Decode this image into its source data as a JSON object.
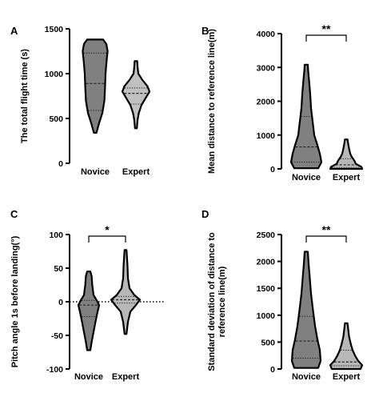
{
  "chart_data": [
    {
      "panel": "A",
      "type": "violin",
      "ylabel": "The total flight time (s)",
      "ylim": [
        0,
        1500
      ],
      "yticks": [
        0,
        500,
        1000,
        1500
      ],
      "categories": [
        "Novice",
        "Expert"
      ],
      "significance": "",
      "zero_line": false,
      "series": [
        {
          "min": 340,
          "max": 1380,
          "q1": 590,
          "median": 890,
          "q3": 1230,
          "color": "#808080",
          "profile": [
            [
              340,
              0.08
            ],
            [
              450,
              0.25
            ],
            [
              560,
              0.45
            ],
            [
              700,
              0.58
            ],
            [
              850,
              0.62
            ],
            [
              1000,
              0.65
            ],
            [
              1150,
              0.72
            ],
            [
              1250,
              0.78
            ],
            [
              1330,
              0.7
            ],
            [
              1380,
              0.5
            ]
          ]
        },
        {
          "min": 390,
          "max": 1140,
          "q1": 660,
          "median": 780,
          "q3": 840,
          "color": "#c0c0c0",
          "profile": [
            [
              390,
              0.06
            ],
            [
              480,
              0.1
            ],
            [
              560,
              0.18
            ],
            [
              650,
              0.35
            ],
            [
              740,
              0.65
            ],
            [
              800,
              0.85
            ],
            [
              860,
              0.72
            ],
            [
              930,
              0.4
            ],
            [
              1000,
              0.15
            ],
            [
              1080,
              0.1
            ],
            [
              1140,
              0.08
            ]
          ]
        }
      ]
    },
    {
      "panel": "B",
      "type": "violin",
      "ylabel": "Mean distance to reference line(m)",
      "ylim": [
        0,
        4000
      ],
      "yticks": [
        0,
        1000,
        2000,
        3000,
        4000
      ],
      "categories": [
        "Novice",
        "Expert"
      ],
      "significance": "**",
      "zero_line": false,
      "series": [
        {
          "min": 20,
          "max": 3080,
          "q1": 200,
          "median": 650,
          "q3": 1550,
          "color": "#808080",
          "profile": [
            [
              20,
              0.75
            ],
            [
              200,
              0.95
            ],
            [
              450,
              0.85
            ],
            [
              700,
              0.7
            ],
            [
              1000,
              0.5
            ],
            [
              1400,
              0.4
            ],
            [
              1800,
              0.3
            ],
            [
              2200,
              0.25
            ],
            [
              2600,
              0.18
            ],
            [
              2900,
              0.12
            ],
            [
              3080,
              0.1
            ]
          ]
        },
        {
          "min": 0,
          "max": 870,
          "q1": 40,
          "median": 120,
          "q3": 300,
          "color": "#b8b8b8",
          "profile": [
            [
              0,
              1.0
            ],
            [
              60,
              0.95
            ],
            [
              150,
              0.6
            ],
            [
              250,
              0.5
            ],
            [
              350,
              0.35
            ],
            [
              450,
              0.25
            ],
            [
              600,
              0.18
            ],
            [
              750,
              0.12
            ],
            [
              870,
              0.08
            ]
          ]
        }
      ]
    },
    {
      "panel": "C",
      "type": "violin",
      "ylabel": "Pitch angle 1s before landing(°)",
      "ylim": [
        -100,
        100
      ],
      "yticks": [
        -100,
        -50,
        0,
        50,
        100
      ],
      "categories": [
        "Novice",
        "Expert"
      ],
      "significance": "*",
      "zero_line": true,
      "series": [
        {
          "min": -72,
          "max": 45,
          "q1": -22,
          "median": -5,
          "q3": 2,
          "color": "#808080",
          "profile": [
            [
              -72,
              0.1
            ],
            [
              -60,
              0.18
            ],
            [
              -45,
              0.3
            ],
            [
              -30,
              0.42
            ],
            [
              -15,
              0.55
            ],
            [
              -5,
              0.65
            ],
            [
              2,
              0.5
            ],
            [
              10,
              0.3
            ],
            [
              25,
              0.22
            ],
            [
              38,
              0.18
            ],
            [
              45,
              0.1
            ]
          ]
        },
        {
          "min": -48,
          "max": 77,
          "q1": -2,
          "median": 3,
          "q3": 8,
          "color": "#b8b8b8",
          "profile": [
            [
              -48,
              0.06
            ],
            [
              -30,
              0.15
            ],
            [
              -15,
              0.3
            ],
            [
              -5,
              0.65
            ],
            [
              3,
              0.9
            ],
            [
              10,
              0.55
            ],
            [
              20,
              0.25
            ],
            [
              35,
              0.15
            ],
            [
              55,
              0.12
            ],
            [
              77,
              0.06
            ]
          ]
        }
      ]
    },
    {
      "panel": "D",
      "type": "violin",
      "ylabel": "Standard deviation of distance to reference line(m)",
      "ylabel_lines": [
        "Standard deviation of distance to",
        "reference line(m)"
      ],
      "ylim": [
        0,
        2500
      ],
      "yticks": [
        0,
        500,
        1000,
        1500,
        2000,
        2500
      ],
      "categories": [
        "Novice",
        "Expert"
      ],
      "significance": "**",
      "zero_line": false,
      "series": [
        {
          "min": 20,
          "max": 2180,
          "q1": 200,
          "median": 520,
          "q3": 980,
          "color": "#808080",
          "profile": [
            [
              20,
              0.75
            ],
            [
              150,
              0.9
            ],
            [
              350,
              0.85
            ],
            [
              550,
              0.7
            ],
            [
              800,
              0.55
            ],
            [
              1100,
              0.42
            ],
            [
              1400,
              0.3
            ],
            [
              1700,
              0.22
            ],
            [
              1950,
              0.15
            ],
            [
              2180,
              0.1
            ]
          ]
        },
        {
          "min": 0,
          "max": 850,
          "q1": 60,
          "median": 130,
          "q3": 350,
          "color": "#b8b8b8",
          "profile": [
            [
              0,
              0.9
            ],
            [
              70,
              1.0
            ],
            [
              150,
              0.75
            ],
            [
              250,
              0.55
            ],
            [
              350,
              0.4
            ],
            [
              450,
              0.3
            ],
            [
              600,
              0.18
            ],
            [
              750,
              0.12
            ],
            [
              850,
              0.08
            ]
          ]
        }
      ]
    }
  ]
}
